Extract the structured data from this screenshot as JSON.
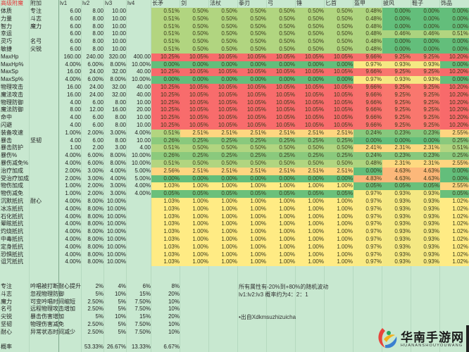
{
  "header": {
    "corner": "高级附魔",
    "attach": "附加",
    "levels": [
      "lv1",
      "lv2",
      "lv3",
      "lv4"
    ],
    "equipment": [
      "长矛",
      "剑",
      "法杖",
      "拳刃",
      "弓",
      "锤",
      "匕首",
      "盔甲",
      "披风",
      "鞋子",
      "饰品"
    ]
  },
  "color_scale": {
    "low": "#63be7b",
    "mid": "#ffeb84",
    "high": "#f8696b"
  },
  "rows": [
    {
      "name": "体质",
      "attach": "专注",
      "lv": [
        "6.00",
        "8.00",
        "10.00",
        ""
      ],
      "equip": [
        "0.51%",
        "0.50%",
        "0.50%",
        "0.50%",
        "0.50%",
        "0.50%",
        "0.50%",
        "0.48%",
        "0.00%",
        "0.00%",
        "0.00%"
      ]
    },
    {
      "name": "力量",
      "attach": "斗志",
      "lv": [
        "6.00",
        "8.00",
        "10.00",
        ""
      ],
      "equip": [
        "0.51%",
        "0.50%",
        "0.50%",
        "0.50%",
        "0.50%",
        "0.50%",
        "0.50%",
        "0.48%",
        "0.00%",
        "0.00%",
        "0.00%"
      ]
    },
    {
      "name": "智力",
      "attach": "魔力",
      "lv": [
        "6.00",
        "8.00",
        "10.00",
        ""
      ],
      "equip": [
        "0.51%",
        "0.50%",
        "0.50%",
        "0.50%",
        "0.50%",
        "0.50%",
        "0.50%",
        "0.48%",
        "0.00%",
        "0.00%",
        "0.00%"
      ]
    },
    {
      "name": "幸运",
      "attach": "",
      "lv": [
        "6.00",
        "8.00",
        "10.00",
        ""
      ],
      "equip": [
        "0.51%",
        "0.50%",
        "0.50%",
        "0.50%",
        "0.50%",
        "0.50%",
        "0.50%",
        "0.48%",
        "0.46%",
        "0.46%",
        "0.51%"
      ]
    },
    {
      "name": "灵巧",
      "attach": "名弓",
      "lv": [
        "6.00",
        "8.00",
        "10.00",
        ""
      ],
      "equip": [
        "0.51%",
        "0.50%",
        "0.50%",
        "0.50%",
        "0.50%",
        "0.50%",
        "0.50%",
        "0.48%",
        "0.00%",
        "0.00%",
        "0.00%"
      ]
    },
    {
      "name": "敏捷",
      "attach": "尖锐",
      "lv": [
        "6.00",
        "8.00",
        "10.00",
        ""
      ],
      "equip": [
        "0.51%",
        "0.50%",
        "0.50%",
        "0.50%",
        "0.50%",
        "0.50%",
        "0.50%",
        "0.48%",
        "0.00%",
        "0.00%",
        "0.00%"
      ]
    },
    {
      "name": "MaxHp",
      "attach": "",
      "lv": [
        "160.00",
        "240.00",
        "320.00",
        "400.00"
      ],
      "equip": [
        "10.25%",
        "10.05%",
        "10.05%",
        "10.05%",
        "10.05%",
        "10.05%",
        "10.05%",
        "9.66%",
        "9.25%",
        "9.25%",
        "10.20%"
      ]
    },
    {
      "name": "MaxHp%",
      "attach": "",
      "lv": [
        "4.00%",
        "6.00%",
        "8.00%",
        "10.00%"
      ],
      "equip": [
        "0.00%",
        "0.00%",
        "0.00%",
        "0.00%",
        "0.00%",
        "0.00%",
        "0.00%",
        "0.97%",
        "0.93%",
        "0.93%",
        "0.00%"
      ]
    },
    {
      "name": "MaxSp",
      "attach": "",
      "lv": [
        "16.00",
        "24.00",
        "32.00",
        "40.00"
      ],
      "equip": [
        "10.25%",
        "10.05%",
        "10.05%",
        "10.05%",
        "10.05%",
        "10.05%",
        "10.05%",
        "9.66%",
        "9.25%",
        "9.25%",
        "10.20%"
      ]
    },
    {
      "name": "MaxSp%",
      "attach": "",
      "lv": [
        "4.00%",
        "6.00%",
        "8.00%",
        "10.00%"
      ],
      "equip": [
        "0.00%",
        "0.00%",
        "0.00%",
        "0.00%",
        "0.00%",
        "0.00%",
        "0.00%",
        "0.97%",
        "0.93%",
        "0.93%",
        "0.00%"
      ]
    },
    {
      "name": "物理攻击",
      "attach": "",
      "lv": [
        "16.00",
        "24.00",
        "32.00",
        "40.00"
      ],
      "equip": [
        "10.25%",
        "10.05%",
        "10.05%",
        "10.05%",
        "10.05%",
        "10.05%",
        "10.05%",
        "9.66%",
        "9.25%",
        "9.25%",
        "10.20%"
      ]
    },
    {
      "name": "魔法攻击",
      "attach": "",
      "lv": [
        "16.00",
        "24.00",
        "32.00",
        "40.00"
      ],
      "equip": [
        "10.25%",
        "10.05%",
        "10.05%",
        "10.05%",
        "10.05%",
        "10.05%",
        "10.05%",
        "9.66%",
        "9.25%",
        "9.25%",
        "10.20%"
      ]
    },
    {
      "name": "物理防御",
      "attach": "",
      "lv": [
        "4.00",
        "6.00",
        "8.00",
        "10.00"
      ],
      "equip": [
        "10.25%",
        "10.05%",
        "10.05%",
        "10.05%",
        "10.05%",
        "10.05%",
        "10.05%",
        "9.66%",
        "9.25%",
        "9.25%",
        "10.20%"
      ]
    },
    {
      "name": "魔法防御",
      "attach": "",
      "lv": [
        "8.00",
        "12.00",
        "16.00",
        "20.00"
      ],
      "equip": [
        "10.25%",
        "10.05%",
        "10.05%",
        "10.05%",
        "10.05%",
        "10.05%",
        "10.05%",
        "9.66%",
        "9.25%",
        "9.25%",
        "10.20%"
      ]
    },
    {
      "name": "命中",
      "attach": "",
      "lv": [
        "4.00",
        "6.00",
        "8.00",
        "10.00"
      ],
      "equip": [
        "10.25%",
        "10.05%",
        "10.05%",
        "10.05%",
        "10.05%",
        "10.05%",
        "10.05%",
        "9.66%",
        "9.25%",
        "9.25%",
        "10.20%"
      ]
    },
    {
      "name": "闪避",
      "attach": "",
      "lv": [
        "4.00",
        "6.00",
        "8.00",
        "10.00"
      ],
      "equip": [
        "10.25%",
        "10.05%",
        "10.05%",
        "10.05%",
        "10.05%",
        "10.05%",
        "10.05%",
        "9.66%",
        "9.25%",
        "9.25%",
        "10.20%"
      ]
    },
    {
      "name": "装备攻速",
      "attach": "",
      "lv": [
        "1.00%",
        "2.00%",
        "3.00%",
        "4.00%"
      ],
      "equip": [
        "0.51%",
        "2.51%",
        "2.51%",
        "2.51%",
        "2.51%",
        "2.51%",
        "2.51%",
        "0.24%",
        "0.23%",
        "0.23%",
        "2.55%"
      ]
    },
    {
      "name": "暴击",
      "attach": "坚韧",
      "lv": [
        "4.00",
        "6.00",
        "8.00",
        "10.00"
      ],
      "equip": [
        "0.26%",
        "0.25%",
        "0.25%",
        "0.25%",
        "0.25%",
        "0.25%",
        "0.25%",
        "0.00%",
        "0.00%",
        "0.00%",
        "0.25%"
      ]
    },
    {
      "name": "暴击防护",
      "attach": "",
      "lv": [
        "1.00",
        "2.00",
        "3.00",
        "4.00"
      ],
      "equip": [
        "0.51%",
        "0.50%",
        "0.50%",
        "0.50%",
        "0.50%",
        "0.50%",
        "0.50%",
        "2.41%",
        "2.31%",
        "2.31%",
        "0.51%"
      ]
    },
    {
      "name": "暴伤%",
      "attach": "",
      "lv": [
        "4.00%",
        "6.00%",
        "8.00%",
        "10.00%"
      ],
      "equip": [
        "0.26%",
        "0.25%",
        "0.25%",
        "0.25%",
        "0.25%",
        "0.25%",
        "0.25%",
        "0.24%",
        "0.23%",
        "0.23%",
        "0.25%"
      ]
    },
    {
      "name": "暴伤减免%",
      "attach": "",
      "lv": [
        "4.00%",
        "6.00%",
        "8.00%",
        "10.00%"
      ],
      "equip": [
        "0.51%",
        "0.50%",
        "0.50%",
        "0.50%",
        "0.50%",
        "0.50%",
        "0.50%",
        "0.48%",
        "2.31%",
        "2.31%",
        "2.55%"
      ]
    },
    {
      "name": "治疗加成",
      "attach": "",
      "lv": [
        "2.00%",
        "3.00%",
        "4.00%",
        "5.00%"
      ],
      "equip": [
        "2.56%",
        "2.51%",
        "2.51%",
        "2.51%",
        "2.51%",
        "2.51%",
        "2.51%",
        "0.00%",
        "4.63%",
        "4.63%",
        "0.00%"
      ]
    },
    {
      "name": "受治疗加成",
      "attach": "",
      "lv": [
        "2.00%",
        "3.00%",
        "4.00%",
        "5.00%"
      ],
      "equip": [
        "0.00%",
        "0.00%",
        "0.00%",
        "0.00%",
        "0.00%",
        "0.00%",
        "0.00%",
        "4.83%",
        "4.63%",
        "4.63%",
        "0.00%"
      ]
    },
    {
      "name": "物伤加成",
      "attach": "",
      "lv": [
        "1.00%",
        "2.00%",
        "3.00%",
        "4.00%"
      ],
      "equip": [
        "1.03%",
        "1.00%",
        "1.00%",
        "1.00%",
        "1.00%",
        "1.00%",
        "1.00%",
        "0.05%",
        "0.05%",
        "0.05%",
        "2.55%"
      ]
    },
    {
      "name": "物伤减免",
      "attach": "",
      "lv": [
        "1.00%",
        "2.00%",
        "3.00%",
        "4.00%"
      ],
      "equip": [
        "0.05%",
        "0.05%",
        "0.05%",
        "0.05%",
        "0.05%",
        "0.05%",
        "0.05%",
        "0.97%",
        "0.93%",
        "0.93%",
        "0.05%"
      ]
    },
    {
      "name": "沉默抵抗",
      "attach": "耐心",
      "lv": [
        "4.00%",
        "8.00%",
        "10.00%",
        ""
      ],
      "equip": [
        "1.03%",
        "1.00%",
        "1.00%",
        "1.00%",
        "1.00%",
        "1.00%",
        "1.00%",
        "0.97%",
        "0.93%",
        "0.93%",
        "1.02%"
      ]
    },
    {
      "name": "冰冻抵抗",
      "attach": "",
      "lv": [
        "4.00%",
        "8.00%",
        "10.00%",
        ""
      ],
      "equip": [
        "1.03%",
        "1.00%",
        "1.00%",
        "1.00%",
        "1.00%",
        "1.00%",
        "1.00%",
        "0.97%",
        "0.93%",
        "0.93%",
        "1.02%"
      ]
    },
    {
      "name": "石化抵抗",
      "attach": "",
      "lv": [
        "4.00%",
        "8.00%",
        "10.00%",
        ""
      ],
      "equip": [
        "1.03%",
        "1.00%",
        "1.00%",
        "1.00%",
        "1.00%",
        "1.00%",
        "1.00%",
        "0.97%",
        "0.93%",
        "0.93%",
        "1.02%"
      ]
    },
    {
      "name": "晕眩抵抗",
      "attach": "",
      "lv": [
        "4.00%",
        "8.00%",
        "10.00%",
        ""
      ],
      "equip": [
        "1.03%",
        "1.00%",
        "1.00%",
        "1.00%",
        "1.00%",
        "1.00%",
        "1.00%",
        "0.97%",
        "0.93%",
        "0.93%",
        "1.02%"
      ]
    },
    {
      "name": "灼烧抵抗",
      "attach": "",
      "lv": [
        "4.00%",
        "8.00%",
        "10.00%",
        ""
      ],
      "equip": [
        "1.03%",
        "1.00%",
        "1.00%",
        "1.00%",
        "1.00%",
        "1.00%",
        "1.00%",
        "0.97%",
        "0.93%",
        "0.93%",
        "1.02%"
      ]
    },
    {
      "name": "中毒抵抗",
      "attach": "",
      "lv": [
        "4.00%",
        "8.00%",
        "10.00%",
        ""
      ],
      "equip": [
        "1.03%",
        "1.00%",
        "1.00%",
        "1.00%",
        "1.00%",
        "1.00%",
        "1.00%",
        "0.97%",
        "0.93%",
        "0.93%",
        "1.02%"
      ]
    },
    {
      "name": "定身抵抗",
      "attach": "",
      "lv": [
        "4.00%",
        "8.00%",
        "10.00%",
        ""
      ],
      "equip": [
        "1.03%",
        "1.00%",
        "1.00%",
        "1.00%",
        "1.00%",
        "1.00%",
        "1.00%",
        "0.97%",
        "0.93%",
        "0.93%",
        "1.02%"
      ]
    },
    {
      "name": "恐惧抵抗",
      "attach": "",
      "lv": [
        "4.00%",
        "8.00%",
        "10.00%",
        ""
      ],
      "equip": [
        "1.03%",
        "1.00%",
        "1.00%",
        "1.00%",
        "1.00%",
        "1.00%",
        "1.00%",
        "0.97%",
        "0.93%",
        "0.93%",
        "1.02%"
      ]
    },
    {
      "name": "诅咒抵抗",
      "attach": "",
      "lv": [
        "4.00%",
        "8.00%",
        "10.00%",
        ""
      ],
      "equip": [
        "1.03%",
        "1.00%",
        "1.00%",
        "1.00%",
        "1.00%",
        "1.00%",
        "1.00%",
        "0.97%",
        "0.93%",
        "0.93%",
        "1.02%"
      ]
    }
  ],
  "bonus": [
    {
      "name": "专注",
      "desc": "吟唱被打断耐心提升",
      "values": [
        "2%",
        "4%",
        "6%",
        "8%"
      ]
    },
    {
      "name": "斗志",
      "desc": "忽视物理防御",
      "values": [
        "5%",
        "10%",
        "15%",
        "20%"
      ]
    },
    {
      "name": "魔力",
      "desc": "可变吟唱时间缩短",
      "values": [
        "2.50%",
        "5%",
        "7.50%",
        "10%"
      ]
    },
    {
      "name": "名弓",
      "desc": "远程物理攻击增加",
      "values": [
        "2.50%",
        "5%",
        "7.50%",
        "10%"
      ]
    },
    {
      "name": "尖锐",
      "desc": "暴击伤害增加",
      "values": [
        "5%",
        "10%",
        "15%",
        "20%"
      ]
    },
    {
      "name": "坚韧",
      "desc": "物理伤害减免",
      "values": [
        "2.50%",
        "5%",
        "7.50%",
        "10%"
      ]
    },
    {
      "name": "耐心",
      "desc": "异常状态时间减少",
      "values": [
        "2.50%",
        "5%",
        "7.50%",
        "10%"
      ]
    }
  ],
  "probability": {
    "label": "概率",
    "values": [
      "53.33%",
      "26.67%",
      "13.33%",
      "6.67%"
    ]
  },
  "notes": [
    "所有属性有-20%到+80%的随机波动",
    "lv1:lv2:lv3 概率约为4：2：1",
    "•出自Xdkmsuzhizuicha"
  ],
  "logo": {
    "brand": "华南手游网",
    "sub": "HUANANSHOUYOUWANG"
  }
}
